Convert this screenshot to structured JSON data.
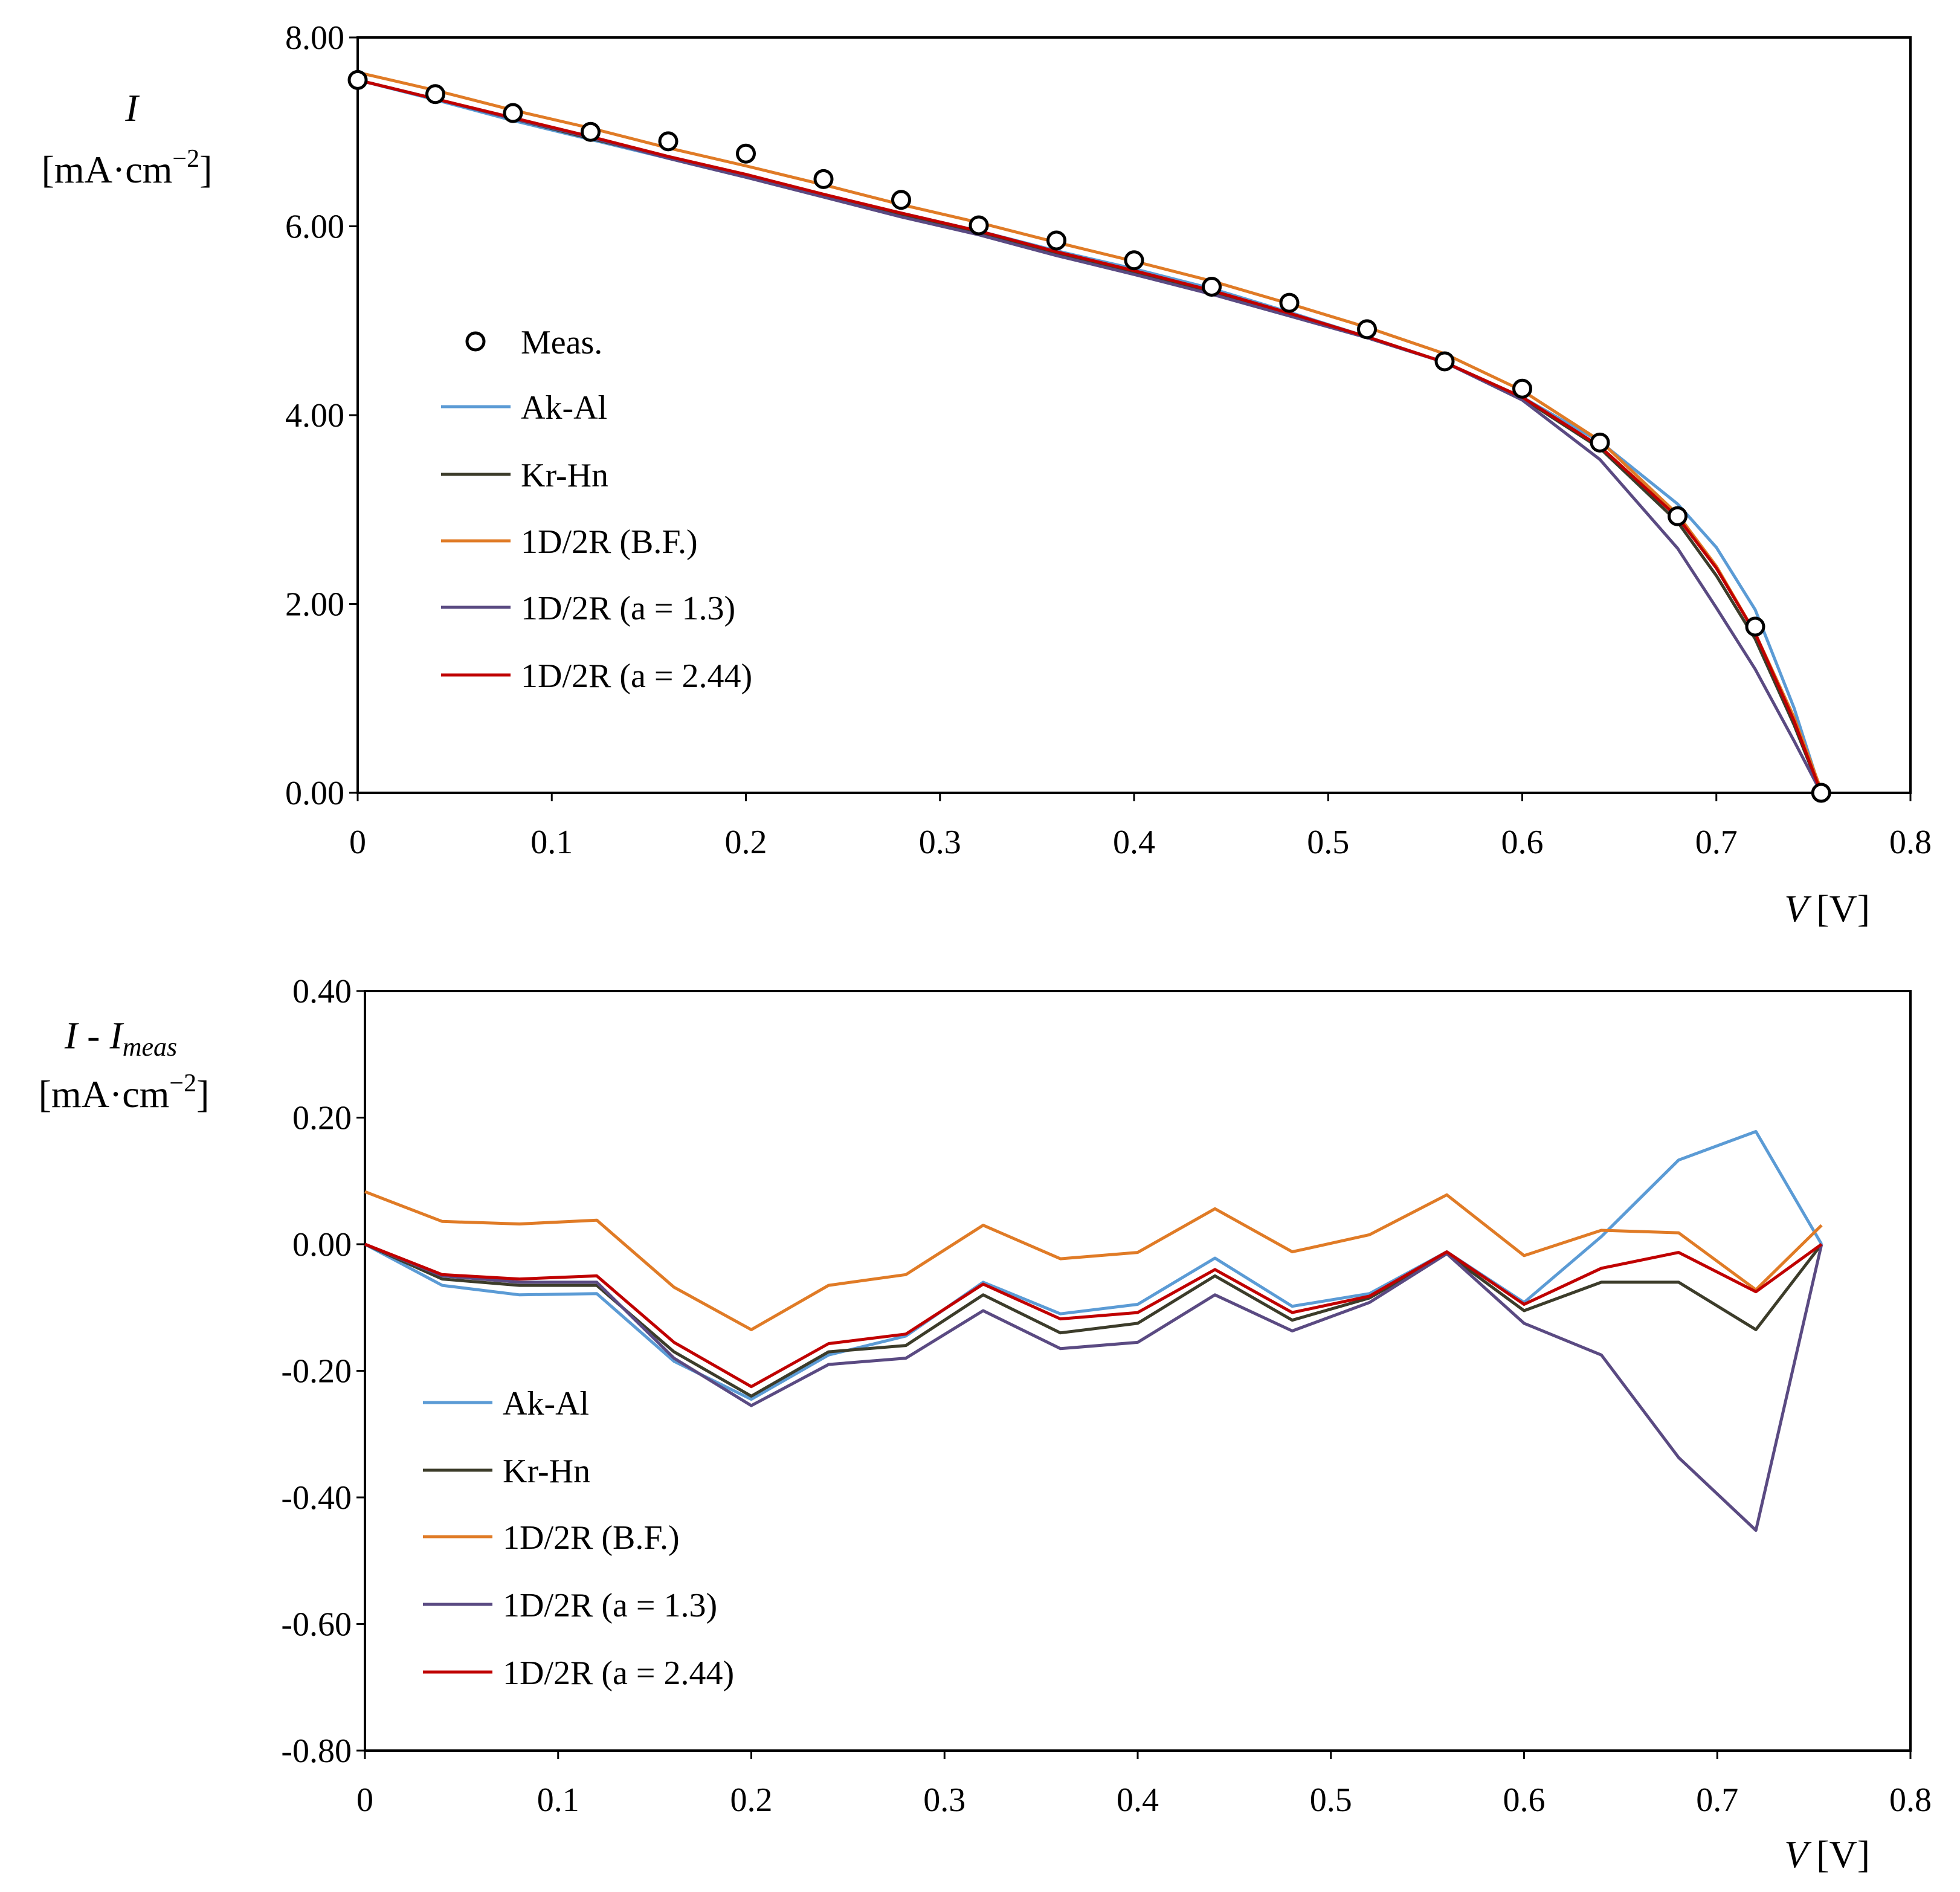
{
  "colors": {
    "ak_al": "#5b9bd5",
    "kr_hn": "#3c3c2a",
    "bf": "#e07b26",
    "a13": "#5a4a82",
    "a244": "#c00000",
    "axis": "#000000"
  },
  "chart_data": [
    {
      "type": "line",
      "panel": "top",
      "x_title": {
        "var": "V",
        "unit": "[V]"
      },
      "y_title": {
        "var": "I",
        "unit_prefix": "[mA·cm",
        "unit_sup": "−2",
        "unit_suffix": "]"
      },
      "xlim": [
        0,
        0.8
      ],
      "ylim": [
        0,
        8
      ],
      "x_ticks": [
        0,
        0.1,
        0.2,
        0.3,
        0.4,
        0.5,
        0.6,
        0.7,
        0.8
      ],
      "x_tick_labels": [
        "0",
        "0.1",
        "0.2",
        "0.3",
        "0.4",
        "0.5",
        "0.6",
        "0.7",
        "0.8"
      ],
      "y_ticks": [
        0,
        2,
        4,
        6,
        8
      ],
      "y_tick_labels": [
        "0.00",
        "2.00",
        "4.00",
        "6.00",
        "8.00"
      ],
      "legend_position": "middle-left",
      "series": [
        {
          "name": "Meas.",
          "key": "meas",
          "marker": "circle",
          "color_key": "axis",
          "x": [
            0,
            0.04,
            0.08,
            0.12,
            0.16,
            0.2,
            0.24,
            0.28,
            0.32,
            0.36,
            0.4,
            0.44,
            0.48,
            0.52,
            0.56,
            0.6,
            0.64,
            0.68,
            0.72,
            0.754
          ],
          "y": [
            7.55,
            7.4,
            7.2,
            7.0,
            6.9,
            6.77,
            6.5,
            6.28,
            6.01,
            5.85,
            5.64,
            5.36,
            5.19,
            4.91,
            4.57,
            4.28,
            3.71,
            2.93,
            1.76,
            0.0
          ]
        },
        {
          "name": "Ak-Al",
          "key": "ak_al",
          "color_key": "ak_al",
          "x": [
            0,
            0.04,
            0.08,
            0.12,
            0.16,
            0.2,
            0.24,
            0.28,
            0.32,
            0.36,
            0.4,
            0.44,
            0.48,
            0.52,
            0.56,
            0.6,
            0.64,
            0.68,
            0.7,
            0.72,
            0.74,
            0.754
          ],
          "y": [
            7.55,
            7.34,
            7.12,
            6.92,
            6.72,
            6.52,
            6.33,
            6.14,
            5.95,
            5.74,
            5.55,
            5.34,
            5.09,
            4.83,
            4.56,
            4.19,
            3.72,
            3.06,
            2.6,
            1.94,
            0.9,
            0.0
          ]
        },
        {
          "name": "Kr-Hn",
          "key": "kr_hn",
          "color_key": "kr_hn",
          "x": [
            0,
            0.04,
            0.08,
            0.12,
            0.16,
            0.2,
            0.24,
            0.28,
            0.32,
            0.36,
            0.4,
            0.44,
            0.48,
            0.52,
            0.56,
            0.6,
            0.64,
            0.68,
            0.7,
            0.72,
            0.74,
            0.754
          ],
          "y": [
            7.55,
            7.35,
            7.14,
            6.93,
            6.73,
            6.53,
            6.33,
            6.12,
            5.93,
            5.71,
            5.51,
            5.31,
            5.07,
            4.82,
            4.56,
            4.18,
            3.65,
            2.87,
            2.3,
            1.63,
            0.72,
            0.0
          ]
        },
        {
          "name": "1D/2R (B.F.)",
          "key": "bf",
          "color_key": "bf",
          "x": [
            0,
            0.04,
            0.08,
            0.12,
            0.16,
            0.2,
            0.24,
            0.28,
            0.32,
            0.36,
            0.4,
            0.44,
            0.48,
            0.52,
            0.56,
            0.6,
            0.64,
            0.68,
            0.7,
            0.72,
            0.74,
            0.754
          ],
          "y": [
            7.63,
            7.44,
            7.23,
            7.04,
            6.83,
            6.64,
            6.44,
            6.23,
            6.04,
            5.83,
            5.63,
            5.42,
            5.18,
            4.93,
            4.65,
            4.26,
            3.73,
            2.95,
            2.4,
            1.69,
            0.8,
            0.03
          ]
        },
        {
          "name": "1D/2R (a = 1.3)",
          "key": "a13",
          "color_key": "a13",
          "x": [
            0,
            0.04,
            0.08,
            0.12,
            0.16,
            0.2,
            0.24,
            0.28,
            0.32,
            0.36,
            0.4,
            0.44,
            0.48,
            0.52,
            0.56,
            0.6,
            0.64,
            0.68,
            0.7,
            0.72,
            0.74,
            0.754
          ],
          "y": [
            7.55,
            7.35,
            7.14,
            6.94,
            6.72,
            6.52,
            6.31,
            6.1,
            5.91,
            5.69,
            5.49,
            5.28,
            5.05,
            4.82,
            4.56,
            4.16,
            3.53,
            2.59,
            1.96,
            1.31,
            0.55,
            0.0
          ]
        },
        {
          "name": "1D/2R (a = 2.44)",
          "key": "a244",
          "color_key": "a244",
          "x": [
            0,
            0.04,
            0.08,
            0.12,
            0.16,
            0.2,
            0.24,
            0.28,
            0.32,
            0.36,
            0.4,
            0.44,
            0.48,
            0.52,
            0.56,
            0.6,
            0.64,
            0.68,
            0.7,
            0.72,
            0.74,
            0.754
          ],
          "y": [
            7.55,
            7.35,
            7.15,
            6.95,
            6.74,
            6.55,
            6.34,
            6.14,
            5.95,
            5.73,
            5.53,
            5.32,
            5.08,
            4.83,
            4.56,
            4.19,
            3.67,
            2.92,
            2.38,
            1.69,
            0.76,
            0.0
          ]
        }
      ]
    },
    {
      "type": "line",
      "panel": "bottom",
      "x_title": {
        "var": "V",
        "unit": "[V]"
      },
      "y_title": {
        "var": "I - I",
        "var_sub": "meas",
        "unit_prefix": "[mA·cm",
        "unit_sup": "−2",
        "unit_suffix": "]"
      },
      "xlim": [
        0,
        0.8
      ],
      "ylim": [
        -0.8,
        0.4
      ],
      "x_ticks": [
        0,
        0.1,
        0.2,
        0.3,
        0.4,
        0.5,
        0.6,
        0.7,
        0.8
      ],
      "x_tick_labels": [
        "0",
        "0.1",
        "0.2",
        "0.3",
        "0.4",
        "0.5",
        "0.6",
        "0.7",
        "0.8"
      ],
      "y_ticks": [
        -0.8,
        -0.6,
        -0.4,
        -0.2,
        0,
        0.2,
        0.4
      ],
      "y_tick_labels": [
        "-0.80",
        "-0.60",
        "-0.40",
        "-0.20",
        "0.00",
        "0.20",
        "0.40"
      ],
      "legend_position": "bottom-left",
      "series": [
        {
          "name": "Ak-Al",
          "key": "ak_al",
          "color_key": "ak_al",
          "x": [
            0,
            0.04,
            0.08,
            0.12,
            0.16,
            0.2,
            0.24,
            0.28,
            0.32,
            0.36,
            0.4,
            0.44,
            0.48,
            0.52,
            0.56,
            0.6,
            0.64,
            0.68,
            0.72,
            0.754
          ],
          "y": [
            0.0,
            -0.065,
            -0.08,
            -0.078,
            -0.185,
            -0.245,
            -0.175,
            -0.145,
            -0.06,
            -0.11,
            -0.095,
            -0.022,
            -0.098,
            -0.078,
            -0.012,
            -0.092,
            0.012,
            0.133,
            0.178,
            0.0
          ]
        },
        {
          "name": "Kr-Hn",
          "key": "kr_hn",
          "color_key": "kr_hn",
          "x": [
            0,
            0.04,
            0.08,
            0.12,
            0.16,
            0.2,
            0.24,
            0.28,
            0.32,
            0.36,
            0.4,
            0.44,
            0.48,
            0.52,
            0.56,
            0.6,
            0.64,
            0.68,
            0.72,
            0.754
          ],
          "y": [
            0.0,
            -0.055,
            -0.065,
            -0.065,
            -0.17,
            -0.24,
            -0.17,
            -0.16,
            -0.08,
            -0.14,
            -0.125,
            -0.05,
            -0.12,
            -0.085,
            -0.015,
            -0.105,
            -0.06,
            -0.06,
            -0.135,
            0.0
          ]
        },
        {
          "name": "1D/2R (B.F.)",
          "key": "bf",
          "color_key": "bf",
          "x": [
            0,
            0.04,
            0.08,
            0.12,
            0.16,
            0.2,
            0.24,
            0.28,
            0.32,
            0.36,
            0.4,
            0.44,
            0.48,
            0.52,
            0.56,
            0.6,
            0.64,
            0.68,
            0.72,
            0.754
          ],
          "y": [
            0.083,
            0.036,
            0.032,
            0.038,
            -0.068,
            -0.135,
            -0.065,
            -0.048,
            0.03,
            -0.023,
            -0.013,
            0.056,
            -0.012,
            0.015,
            0.078,
            -0.018,
            0.022,
            0.018,
            -0.072,
            0.03
          ]
        },
        {
          "name": "1D/2R (a = 1.3)",
          "key": "a13",
          "color_key": "a13",
          "x": [
            0,
            0.04,
            0.08,
            0.12,
            0.16,
            0.2,
            0.24,
            0.28,
            0.32,
            0.36,
            0.4,
            0.44,
            0.48,
            0.52,
            0.56,
            0.6,
            0.64,
            0.68,
            0.72,
            0.754
          ],
          "y": [
            0.0,
            -0.05,
            -0.06,
            -0.06,
            -0.18,
            -0.255,
            -0.19,
            -0.18,
            -0.105,
            -0.165,
            -0.155,
            -0.08,
            -0.137,
            -0.092,
            -0.015,
            -0.125,
            -0.175,
            -0.337,
            -0.452,
            0.0
          ]
        },
        {
          "name": "1D/2R (a = 2.44)",
          "key": "a244",
          "color_key": "a244",
          "x": [
            0,
            0.04,
            0.08,
            0.12,
            0.16,
            0.2,
            0.24,
            0.28,
            0.32,
            0.36,
            0.4,
            0.44,
            0.48,
            0.52,
            0.56,
            0.6,
            0.64,
            0.68,
            0.72,
            0.754
          ],
          "y": [
            0.0,
            -0.048,
            -0.055,
            -0.05,
            -0.155,
            -0.225,
            -0.157,
            -0.142,
            -0.063,
            -0.118,
            -0.108,
            -0.04,
            -0.108,
            -0.082,
            -0.012,
            -0.095,
            -0.038,
            -0.013,
            -0.075,
            0.0
          ]
        }
      ]
    }
  ]
}
